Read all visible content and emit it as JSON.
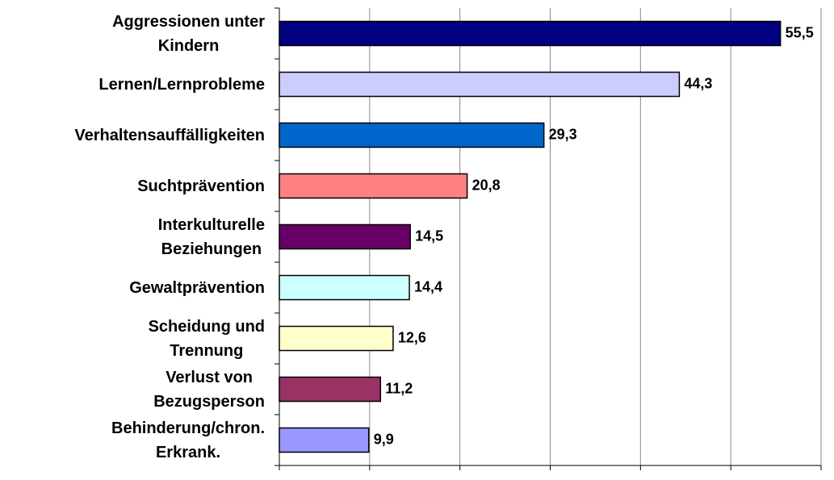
{
  "chart_data": {
    "type": "bar",
    "orientation": "horizontal",
    "categories": [
      "Aggressionen unter\nKindern",
      "Lernen/Lernprobleme",
      "Verhaltensauffälligkeiten",
      "Suchtprävention",
      "Interkulturelle\nBeziehungen",
      "Gewaltprävention",
      "Scheidung und\nTrennung",
      "Verlust von\nBezugsperson",
      "Behinderung/chron.\nErkrank."
    ],
    "values": [
      55.5,
      44.3,
      29.3,
      20.8,
      14.5,
      14.4,
      12.6,
      11.2,
      9.9
    ],
    "value_labels": [
      "55,5",
      "44,3",
      "29,3",
      "20,8",
      "14,5",
      "14,4",
      "12,6",
      "11,2",
      "9,9"
    ],
    "colors": [
      "#000080",
      "#ccccff",
      "#0066cc",
      "#ff8080",
      "#660066",
      "#ccffff",
      "#ffffcc",
      "#993366",
      "#9999ff"
    ],
    "xlim": [
      0,
      60
    ],
    "xticks": [
      0,
      10,
      20,
      30,
      40,
      50,
      60
    ],
    "grid": true
  }
}
